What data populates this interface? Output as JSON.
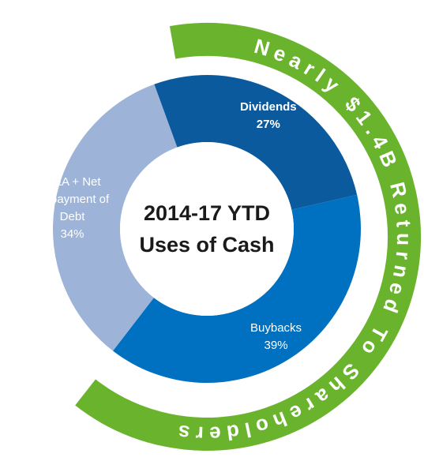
{
  "chart_data": {
    "type": "pie",
    "donut": true,
    "title": "2014-17 YTD Uses of Cash",
    "annotation": "Nearly $1.4B Returned To Shareholders",
    "annotation_color": "#6ab42d",
    "categories": [
      "Dividends",
      "Buybacks",
      "M&A + Net Repayment of Debt"
    ],
    "values": [
      27,
      39,
      34
    ],
    "value_labels": [
      "27%",
      "39%",
      "34%"
    ],
    "colors": [
      "#0b5a9e",
      "#0070c0",
      "#9db3d8"
    ]
  }
}
